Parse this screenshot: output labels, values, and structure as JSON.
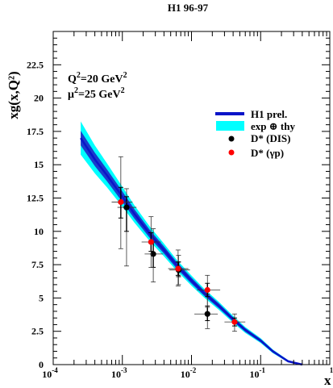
{
  "chart_data": {
    "type": "scatter",
    "title": "H1 96-97",
    "ylabel": "xg(x,Q²)",
    "xlabel": "x",
    "x_scale": "log",
    "xlim": [
      0.0001,
      1
    ],
    "ylim": [
      0,
      25
    ],
    "y_ticks": [
      0,
      2.5,
      5,
      7.5,
      10,
      12.5,
      15,
      17.5,
      20,
      22.5
    ],
    "y_tick_labels": [
      "0",
      "2.5",
      "5",
      "7.5",
      "10",
      "12.5",
      "15",
      "17.5",
      "20",
      "22.5"
    ],
    "x_ticks": [
      0.0001,
      0.001,
      0.01,
      0.1,
      1
    ],
    "x_tick_labels": [
      {
        "base": "10",
        "exp": "-4"
      },
      {
        "base": "10",
        "exp": "-3"
      },
      {
        "base": "10",
        "exp": "-2"
      },
      {
        "base": "10",
        "exp": "-1"
      },
      {
        "base": "",
        "exp": "1"
      }
    ],
    "annotation": {
      "q2": {
        "base": "Q",
        "exp": "2",
        "rest": "=20 GeV",
        "unit_exp": "2"
      },
      "mu2": {
        "base": "μ",
        "exp": "2",
        "rest": "=25 GeV",
        "unit_exp": "2"
      }
    },
    "legend": {
      "placement": "top-right",
      "entries": [
        {
          "label": "H1 prel.",
          "kind": "line",
          "color": "#0a14c8"
        },
        {
          "label": "exp ⊕ thy",
          "kind": "band",
          "color": "#00ffff"
        },
        {
          "label": "D* (DIS)",
          "kind": "marker",
          "color": "#000000"
        },
        {
          "label": "D* (γp)",
          "kind": "marker",
          "color": "#ff0000"
        }
      ]
    },
    "curve": {
      "x": [
        0.00025,
        0.0004,
        0.0006,
        0.001,
        0.0015,
        0.0025,
        0.004,
        0.006,
        0.01,
        0.015,
        0.025,
        0.04,
        0.06,
        0.1,
        0.15,
        0.25,
        0.4
      ],
      "central": [
        17.0,
        15.4,
        14.2,
        12.6,
        11.3,
        9.8,
        8.6,
        7.5,
        6.3,
        5.4,
        4.4,
        3.4,
        2.6,
        1.8,
        1.0,
        0.25,
        0.0
      ],
      "inner_half_width": [
        0.55,
        0.5,
        0.45,
        0.4,
        0.35,
        0.3,
        0.27,
        0.25,
        0.22,
        0.2,
        0.18,
        0.16,
        0.14,
        0.12,
        0.1,
        0.06,
        0.0
      ],
      "outer_half_width": [
        1.25,
        1.05,
        0.9,
        0.75,
        0.65,
        0.55,
        0.48,
        0.42,
        0.38,
        0.34,
        0.3,
        0.26,
        0.22,
        0.18,
        0.14,
        0.08,
        0.0
      ]
    },
    "series": [
      {
        "name": "D* (DIS)",
        "color": "#000000",
        "points": [
          {
            "x": 0.00115,
            "y": 11.8,
            "xlo": 0.00085,
            "xhi": 0.0016,
            "ylo": 7.4,
            "yhi": 13.2,
            "ylo_inner": 10.0,
            "yhi_inner": 12.6
          },
          {
            "x": 0.0028,
            "y": 8.3,
            "xlo": 0.0021,
            "xhi": 0.0039,
            "ylo": 6.2,
            "yhi": 10.2,
            "ylo_inner": 7.3,
            "yhi_inner": 9.2
          },
          {
            "x": 0.0065,
            "y": 7.1,
            "xlo": 0.0048,
            "xhi": 0.0095,
            "ylo": 6.0,
            "yhi": 8.2,
            "ylo_inner": 6.6,
            "yhi_inner": 7.7
          },
          {
            "x": 0.017,
            "y": 3.8,
            "xlo": 0.011,
            "xhi": 0.024,
            "ylo": 2.7,
            "yhi": 5.3,
            "ylo_inner": 3.3,
            "yhi_inner": 4.4
          }
        ]
      },
      {
        "name": "D* (γp)",
        "color": "#ff0000",
        "points": [
          {
            "x": 0.00095,
            "y": 12.2,
            "xlo": 0.0007,
            "xhi": 0.0014,
            "ylo": 8.7,
            "yhi": 15.6,
            "ylo_inner": 11.0,
            "yhi_inner": 13.3
          },
          {
            "x": 0.0026,
            "y": 9.2,
            "xlo": 0.0019,
            "xhi": 0.0036,
            "ylo": 7.3,
            "yhi": 11.1,
            "ylo_inner": 8.5,
            "yhi_inner": 9.9
          },
          {
            "x": 0.0064,
            "y": 7.2,
            "xlo": 0.0046,
            "xhi": 0.009,
            "ylo": 5.9,
            "yhi": 8.6,
            "ylo_inner": 6.7,
            "yhi_inner": 7.7
          },
          {
            "x": 0.017,
            "y": 5.6,
            "xlo": 0.012,
            "xhi": 0.026,
            "ylo": 4.3,
            "yhi": 6.7,
            "ylo_inner": 5.1,
            "yhi_inner": 6.1
          },
          {
            "x": 0.042,
            "y": 3.2,
            "xlo": 0.03,
            "xhi": 0.06,
            "ylo": 2.5,
            "yhi": 3.8,
            "ylo_inner": 2.9,
            "yhi_inner": 3.5
          }
        ]
      }
    ]
  }
}
